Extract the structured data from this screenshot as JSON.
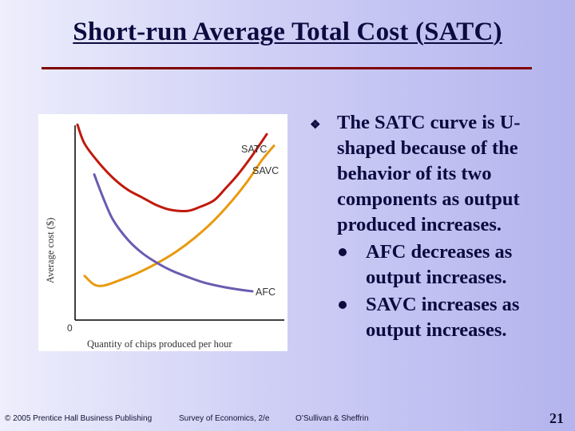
{
  "slide": {
    "title": "Short-run Average Total Cost (SATC)",
    "accent_color": "#800000",
    "text_color": "#0b0b40"
  },
  "bullets": {
    "main": "The SATC curve is U-shaped because of the behavior of its two components as output produced increases.",
    "main_icon": "diamond-bullet-icon",
    "sub": [
      "AFC decreases as output increases.",
      "SAVC increases as output increases."
    ]
  },
  "chart_data": {
    "type": "line",
    "title": "",
    "xlabel": "Quantity of chips produced per hour",
    "ylabel": "Average cost ($)",
    "origin_label": "0",
    "grid": false,
    "series": [
      {
        "name": "SATC",
        "color": "#c01a0c",
        "x": [
          0.1,
          0.4,
          1.0,
          1.6,
          2.2,
          2.8,
          3.4,
          4.0,
          4.7,
          5.2,
          5.8,
          6.3,
          6.8,
          7.4,
          8.0
        ],
        "y": [
          10.2,
          9.2,
          8.2,
          7.4,
          6.8,
          6.4,
          6.0,
          5.75,
          5.7,
          5.9,
          6.25,
          6.9,
          7.6,
          8.6,
          9.7
        ]
      },
      {
        "name": "SAVC",
        "color": "#e89a0e",
        "x": [
          0.4,
          0.8,
          1.2,
          1.8,
          2.6,
          3.4,
          4.2,
          5.0,
          5.8,
          6.6,
          7.2,
          7.8,
          8.3
        ],
        "y": [
          2.3,
          1.85,
          1.8,
          2.05,
          2.45,
          2.95,
          3.55,
          4.3,
          5.2,
          6.3,
          7.25,
          8.35,
          9.1
        ]
      },
      {
        "name": "AFC",
        "color": "#6a5bb0",
        "x": [
          0.8,
          1.2,
          1.6,
          2.2,
          2.8,
          3.4,
          4.0,
          4.7,
          5.4,
          6.1,
          6.8,
          7.4
        ],
        "y": [
          7.6,
          6.3,
          5.2,
          4.2,
          3.5,
          3.0,
          2.6,
          2.25,
          1.95,
          1.75,
          1.6,
          1.5
        ]
      }
    ]
  },
  "footer": {
    "publisher": "© 2005 Prentice Hall Business Publishing",
    "book": "Survey of Economics, 2/e",
    "authors": "O’Sullivan & Sheffrin",
    "page": "21"
  }
}
